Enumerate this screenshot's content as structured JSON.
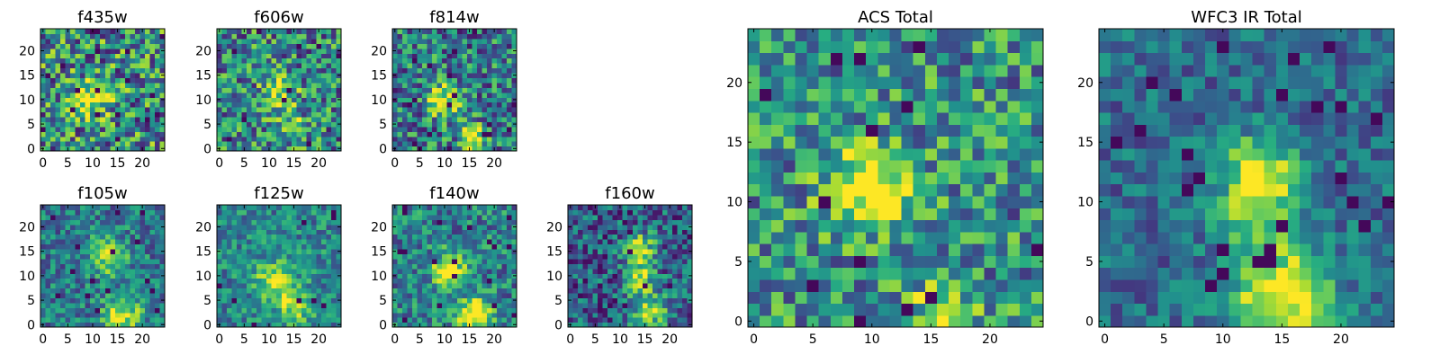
{
  "chart_data": [
    {
      "type": "heatmap",
      "title": "f435w",
      "xlim": [
        -0.5,
        24.5
      ],
      "ylim": [
        -0.5,
        24.5
      ],
      "xticks": [
        0,
        5,
        10,
        15,
        20
      ],
      "yticks": [
        0,
        5,
        10,
        15,
        20
      ],
      "grid": false,
      "colormap": "viridis",
      "data_model": "pixel grid 25x25; brightest values concentrated around (10, 10), noise-dominated"
    },
    {
      "type": "heatmap",
      "title": "f606w",
      "xlim": [
        -0.5,
        24.5
      ],
      "ylim": [
        -0.5,
        24.5
      ],
      "xticks": [
        0,
        5,
        10,
        15,
        20
      ],
      "yticks": [
        0,
        5,
        10,
        15,
        20
      ],
      "grid": false,
      "colormap": "viridis",
      "data_model": "pixel grid 25x25; faint bright blob near (12, 11)"
    },
    {
      "type": "heatmap",
      "title": "f814w",
      "xlim": [
        -0.5,
        24.5
      ],
      "ylim": [
        -0.5,
        24.5
      ],
      "xticks": [
        0,
        5,
        10,
        15,
        20
      ],
      "yticks": [
        0,
        5,
        10,
        15,
        20
      ],
      "grid": false,
      "colormap": "viridis",
      "data_model": "pixel grid 25x25; bright blob near (10, 10) and (16, 2)"
    },
    {
      "type": "heatmap",
      "title": "f105w",
      "xlim": [
        -0.5,
        24.5
      ],
      "ylim": [
        -0.5,
        24.5
      ],
      "xticks": [
        0,
        5,
        10,
        15,
        20
      ],
      "yticks": [
        0,
        5,
        10,
        15,
        20
      ],
      "grid": false,
      "colormap": "viridis",
      "data_model": "pixel grid 25x25; bright regions near (13, 14) and (16, 2)"
    },
    {
      "type": "heatmap",
      "title": "f125w",
      "xlim": [
        -0.5,
        24.5
      ],
      "ylim": [
        -0.5,
        24.5
      ],
      "xticks": [
        0,
        5,
        10,
        15,
        20
      ],
      "yticks": [
        0,
        5,
        10,
        15,
        20
      ],
      "grid": false,
      "colormap": "viridis",
      "data_model": "pixel grid 25x25; bright regions near (11, 9) and (15, 4)"
    },
    {
      "type": "heatmap",
      "title": "f140w",
      "xlim": [
        -0.5,
        24.5
      ],
      "ylim": [
        -0.5,
        24.5
      ],
      "xticks": [
        0,
        5,
        10,
        15,
        20
      ],
      "yticks": [
        0,
        5,
        10,
        15,
        20
      ],
      "grid": false,
      "colormap": "viridis",
      "data_model": "pixel grid 25x25; bright regions near (11, 11) and (16, 2)"
    },
    {
      "type": "heatmap",
      "title": "f160w",
      "xlim": [
        -0.5,
        24.5
      ],
      "ylim": [
        -0.5,
        24.5
      ],
      "xticks": [
        0,
        5,
        10,
        15,
        20
      ],
      "yticks": [
        0,
        5,
        10,
        15,
        20
      ],
      "grid": false,
      "colormap": "viridis",
      "data_model": "pixel grid 25x25; elongated bright arc from (14, 16) to (16, 3)"
    },
    {
      "type": "heatmap",
      "title": "ACS Total",
      "xlim": [
        -0.5,
        24.5
      ],
      "ylim": [
        -0.5,
        24.5
      ],
      "xticks": [
        0,
        5,
        10,
        15,
        20
      ],
      "yticks": [
        0,
        5,
        10,
        15,
        20
      ],
      "grid": false,
      "colormap": "viridis",
      "data_model": "pixel grid 25x25; brightest region around (10, 11), secondary near (16, 1)"
    },
    {
      "type": "heatmap",
      "title": "WFC3 IR Total",
      "xlim": [
        -0.5,
        24.5
      ],
      "ylim": [
        -0.5,
        24.5
      ],
      "xticks": [
        0,
        5,
        10,
        15,
        20
      ],
      "yticks": [
        0,
        5,
        10,
        15,
        20
      ],
      "grid": false,
      "colormap": "viridis",
      "data_model": "pixel grid 25x25; bright vertical ridge at x=13, y=10-15, brightest blob around (15, 2)"
    }
  ]
}
